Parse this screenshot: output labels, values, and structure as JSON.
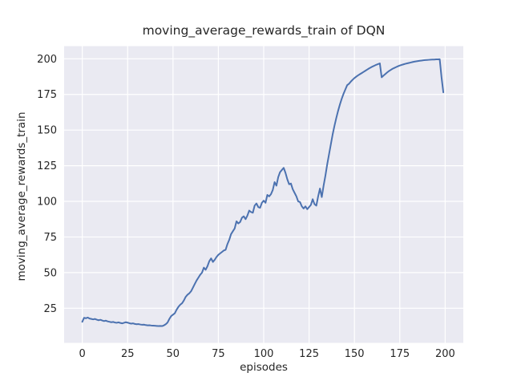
{
  "chart_data": {
    "type": "line",
    "title": "moving_average_rewards_train of DQN",
    "xlabel": "episodes",
    "ylabel": "moving_average_rewards_train",
    "x_ticks": [
      0,
      25,
      50,
      75,
      100,
      125,
      150,
      175,
      200
    ],
    "y_ticks": [
      25,
      50,
      75,
      100,
      125,
      150,
      175,
      200
    ],
    "xlim": [
      -10,
      210
    ],
    "ylim": [
      0.7,
      208.9
    ],
    "grid": true,
    "legend": false,
    "x_start": 0,
    "x_step": 1,
    "values": [
      15.5,
      18.3,
      18.0,
      18.5,
      17.8,
      17.5,
      17.2,
      17.5,
      17.0,
      16.6,
      16.9,
      16.4,
      16.0,
      16.3,
      15.8,
      15.5,
      15.2,
      15.4,
      15.0,
      14.8,
      15.1,
      14.7,
      14.4,
      14.8,
      15.2,
      14.9,
      14.5,
      14.2,
      14.4,
      14.0,
      13.8,
      13.9,
      13.6,
      13.4,
      13.5,
      13.2,
      13.0,
      13.1,
      12.9,
      12.8,
      12.7,
      12.6,
      12.5,
      12.6,
      12.5,
      13.0,
      13.8,
      15.0,
      17.5,
      19.5,
      20.5,
      21.5,
      24.0,
      26.0,
      27.5,
      28.5,
      30.5,
      33.0,
      34.5,
      35.5,
      37.0,
      39.5,
      42.0,
      44.5,
      46.5,
      48.5,
      50.0,
      53.5,
      52.0,
      54.5,
      58.0,
      60.0,
      57.5,
      59.0,
      61.0,
      62.5,
      63.5,
      64.5,
      65.5,
      66.0,
      70.0,
      73.0,
      77.0,
      79.0,
      81.0,
      86.0,
      84.5,
      85.5,
      88.5,
      89.5,
      87.5,
      90.0,
      93.5,
      92.5,
      92.0,
      97.0,
      98.5,
      96.0,
      95.5,
      99.0,
      100.5,
      99.0,
      104.5,
      103.5,
      105.0,
      108.0,
      113.5,
      111.0,
      117.0,
      120.5,
      122.0,
      123.5,
      120.0,
      115.5,
      112.0,
      112.5,
      108.5,
      106.0,
      103.5,
      100.0,
      99.5,
      96.5,
      95.0,
      96.5,
      94.5,
      96.0,
      97.5,
      101.5,
      98.0,
      97.0,
      103.5,
      109.0,
      103.0,
      111.0,
      118.0,
      126.0,
      133.0,
      140.0,
      147.0,
      153.0,
      158.5,
      163.5,
      168.0,
      172.0,
      175.5,
      178.5,
      181.5,
      182.5,
      184.0,
      185.3,
      186.5,
      187.5,
      188.4,
      189.2,
      190.0,
      190.8,
      191.6,
      192.4,
      193.2,
      193.9,
      194.6,
      195.2,
      195.8,
      196.3,
      196.8,
      187.0,
      188.2,
      189.3,
      190.4,
      191.4,
      192.2,
      193.0,
      193.6,
      194.2,
      194.8,
      195.3,
      195.7,
      196.1,
      196.5,
      196.8,
      197.1,
      197.4,
      197.7,
      198.0,
      198.2,
      198.4,
      198.6,
      198.8,
      199.0,
      199.1,
      199.2,
      199.3,
      199.4,
      199.5,
      199.5,
      199.6,
      199.6,
      199.7,
      187.0,
      176.5
    ],
    "colors": {
      "line": "#4C72B0",
      "plot_bg": "#EAEAF2",
      "grid": "#FFFFFF",
      "text": "#262626",
      "figure_bg": "#FFFFFF"
    }
  }
}
